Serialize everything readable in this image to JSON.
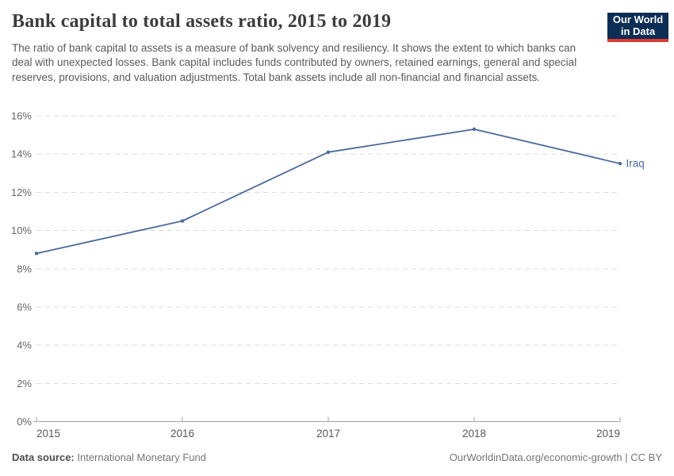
{
  "header": {
    "title": "Bank capital to total assets ratio, 2015 to 2019",
    "subtitle": "The ratio of bank capital to assets is a measure of bank solvency and resiliency. It shows the extent to which banks can deal with unexpected losses. Bank capital includes funds contributed by owners, retained earnings, general and special reserves, provisions, and valuation adjustments. Total bank assets include all non-financial and financial assets.",
    "logo": {
      "line1": "Our World",
      "line2": "in Data",
      "bg_color": "#0C2D54",
      "accent_color": "#DC3A33",
      "text_color": "#ffffff"
    }
  },
  "chart_data": {
    "type": "line",
    "title": "Bank capital to total assets ratio, 2015 to 2019",
    "x": [
      2015,
      2016,
      2017,
      2018,
      2019
    ],
    "series": [
      {
        "name": "Iraq",
        "values": [
          8.8,
          10.5,
          14.1,
          15.3,
          13.5
        ],
        "color": "#4C6A9C"
      }
    ],
    "xlabel": "",
    "ylabel": "",
    "ylim": [
      0,
      16
    ],
    "yticks": [
      0,
      2,
      4,
      6,
      8,
      10,
      12,
      14,
      16
    ],
    "ytick_suffix": "%",
    "grid": "horizontal-dashed",
    "legend_position": "end-of-line-label",
    "colors": {
      "gridline": "#dcdcdc",
      "axis_line": "#a5a5a5",
      "ytick_label": "#666666",
      "xtick_label": "#595959"
    }
  },
  "footer": {
    "datasource_label": "Data source:",
    "datasource_value": "International Monetary Fund",
    "link": "OurWorldinData.org/economic-growth",
    "separator": " | ",
    "license": "CC BY"
  }
}
